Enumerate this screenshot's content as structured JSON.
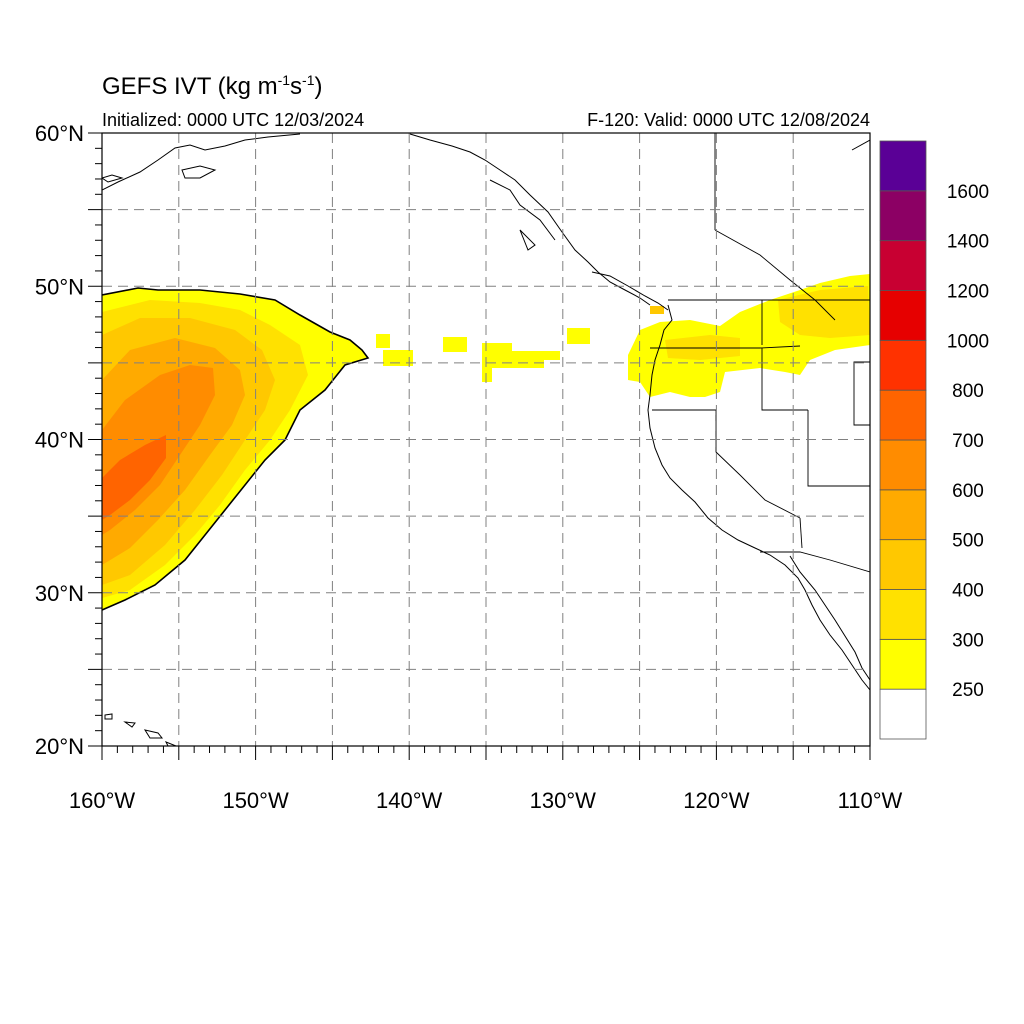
{
  "title": {
    "main": "GEFS IVT (kg m",
    "sup1": "-1",
    "mid": "s",
    "sup2": "-1",
    "end": ")"
  },
  "subtitle": {
    "initialized": "Initialized: 0000 UTC 12/03/2024",
    "valid": "F-120: Valid: 0000 UTC 12/08/2024"
  },
  "map": {
    "lon_range": [
      -160,
      -110
    ],
    "lat_range": [
      20,
      60
    ],
    "lat_labels": [
      "20°N",
      "30°N",
      "40°N",
      "50°N",
      "60°N"
    ],
    "lon_labels": [
      "160°W",
      "150°W",
      "140°W",
      "130°W",
      "120°W",
      "110°W"
    ],
    "grid": "dashed every 5°",
    "colors": {
      "land_outline": "#000000",
      "grid": "#808080"
    }
  },
  "colorbar": {
    "levels": [
      "250",
      "300",
      "400",
      "500",
      "600",
      "700",
      "800",
      "1000",
      "1200",
      "1400",
      "1600"
    ],
    "colors": [
      "#ffffff",
      "#ffff00",
      "#ffe100",
      "#ffc800",
      "#ffaa00",
      "#ff8c00",
      "#ff6400",
      "#ff3200",
      "#e60000",
      "#c80032",
      "#8c0064",
      "#5a0096"
    ]
  }
}
